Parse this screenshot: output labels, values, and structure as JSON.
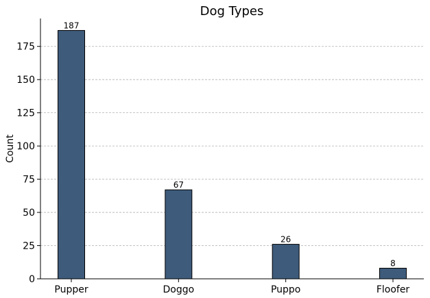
{
  "chart_data": {
    "type": "bar",
    "title": "Dog Types",
    "xlabel": "",
    "ylabel": "Count",
    "categories": [
      "Pupper",
      "Doggo",
      "Puppo",
      "Floofer"
    ],
    "values": [
      187,
      67,
      26,
      8
    ],
    "data_labels": [
      "187",
      "67",
      "26",
      "8"
    ],
    "ylim": [
      0,
      196
    ],
    "yticks": [
      0,
      25,
      50,
      75,
      100,
      125,
      150,
      175
    ],
    "ytick_labels": [
      "0",
      "25",
      "50",
      "75",
      "100",
      "125",
      "150",
      "175"
    ],
    "grid": "y-dashed",
    "legend": "none",
    "colors": {
      "bar_fill": "#3e5b7b",
      "bar_edge": "#000000",
      "grid": "#b0b0b0",
      "axis": "#000000"
    }
  }
}
